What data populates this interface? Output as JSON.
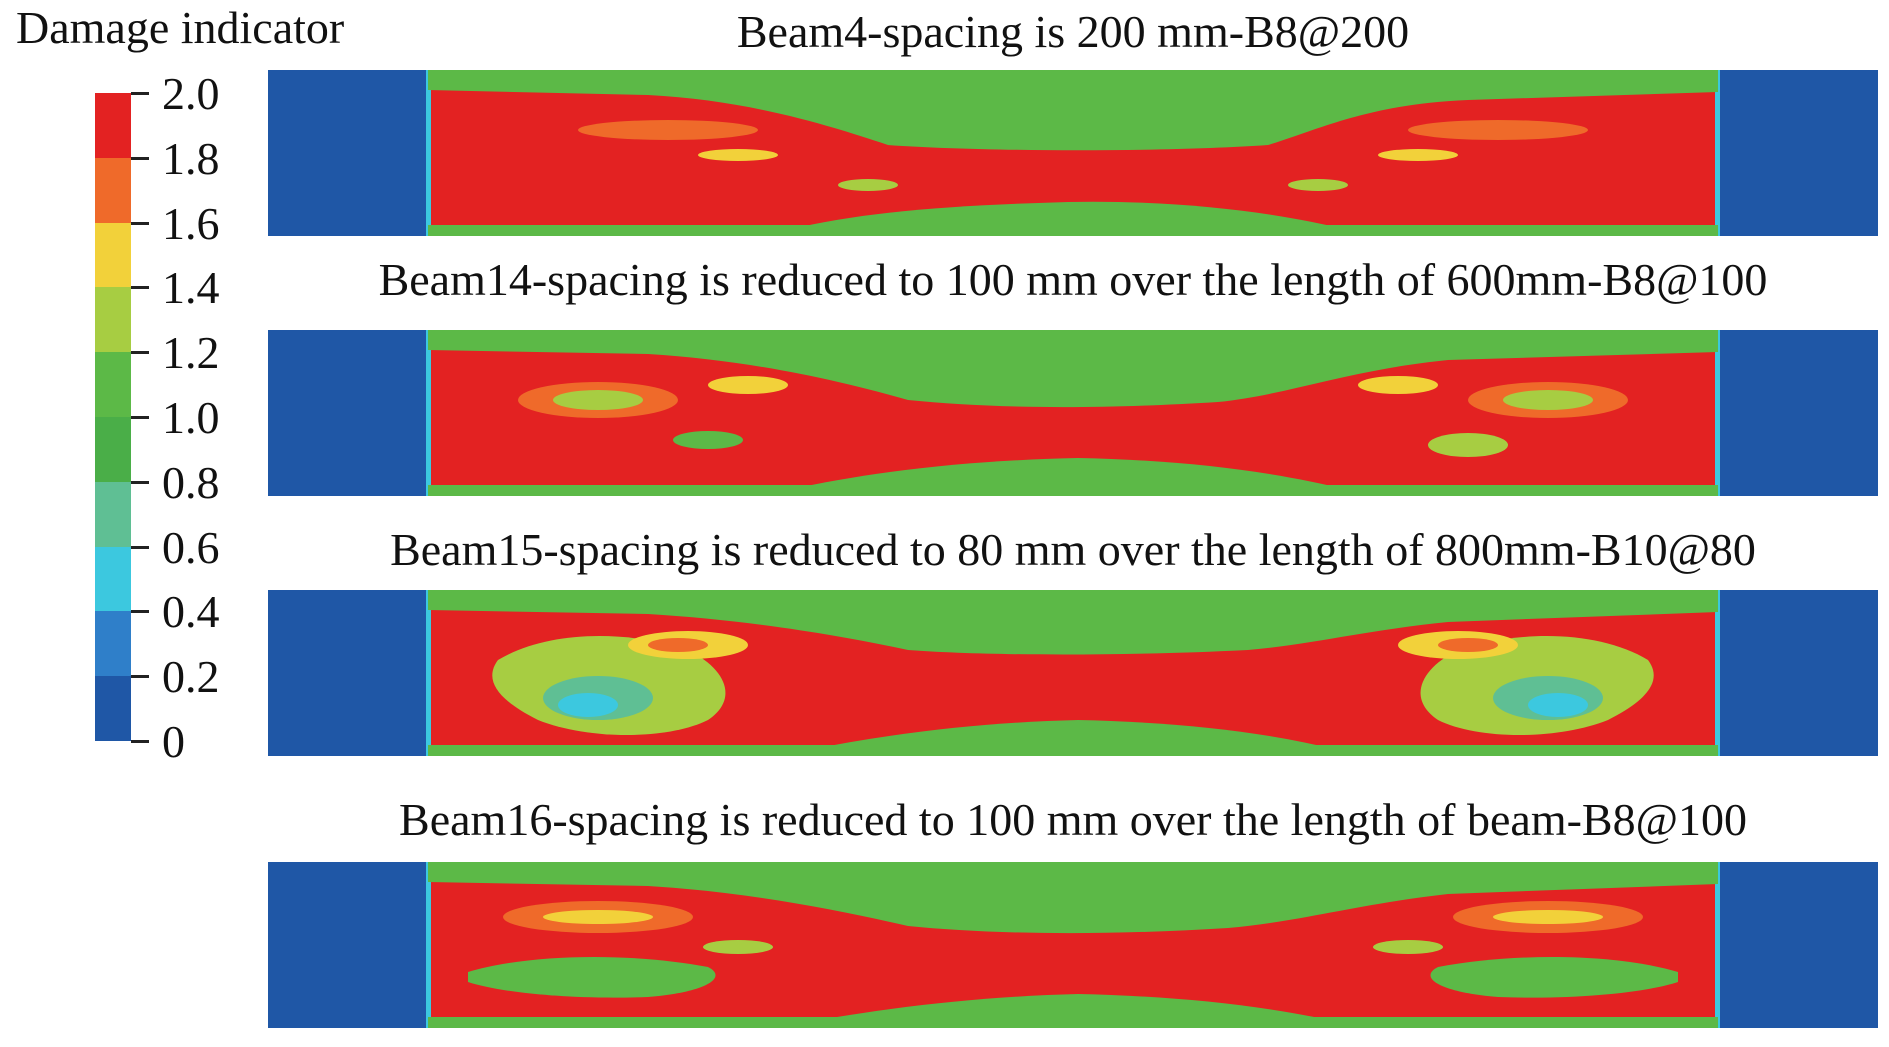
{
  "legend": {
    "title": "Damage indicator",
    "ticks": [
      "2.0",
      "1.8",
      "1.6",
      "1.4",
      "1.2",
      "1.0",
      "0.8",
      "0.6",
      "0.4",
      "0.2",
      "0"
    ],
    "colors": [
      "#e32222",
      "#ef6a2a",
      "#f2d13a",
      "#a7cd42",
      "#5cb947",
      "#4aae48",
      "#5fbf94",
      "#3cc8df",
      "#2f7fc9",
      "#1f57a6"
    ]
  },
  "beams": [
    {
      "title": "Beam4-spacing is 200 mm-B8@200"
    },
    {
      "title": "Beam14-spacing is reduced to 100 mm over the length of 600mm-B8@100"
    },
    {
      "title": "Beam15-spacing is reduced to 80 mm over the length of 800mm-B10@80"
    },
    {
      "title": "Beam16-spacing is reduced to 100 mm over the length of beam-B8@100"
    }
  ],
  "palette": {
    "support_blue": "#1f57a6",
    "damage_red": "#e32222",
    "damage_orange": "#ef6a2a",
    "damage_yellow": "#f2d13a",
    "low_green": "#5cb947",
    "light_green": "#a7cd42",
    "teal": "#5fbf94",
    "cyan": "#3cc8df"
  }
}
